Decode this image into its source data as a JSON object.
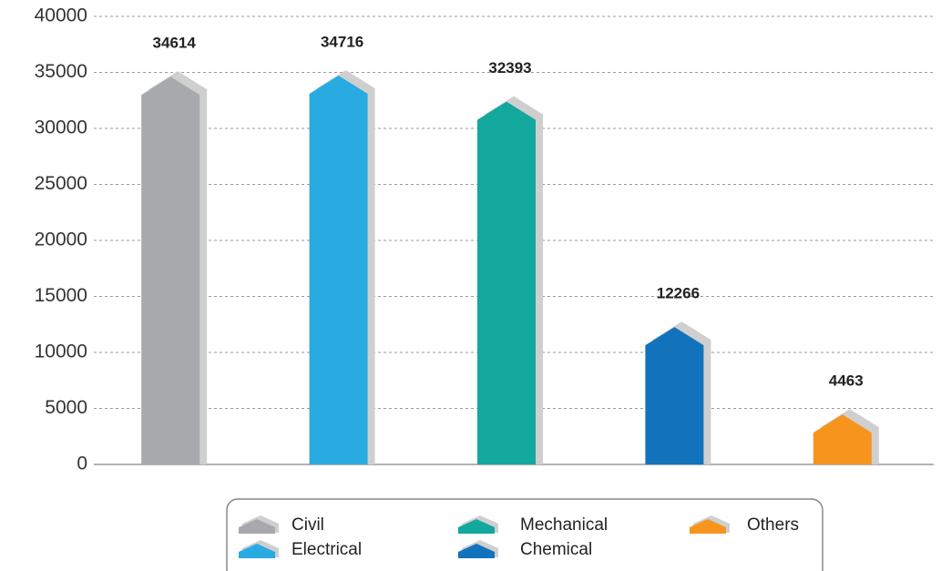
{
  "chart_data": {
    "type": "bar",
    "categories": [
      "Civil",
      "Electrical",
      "Mechanical",
      "Chemical",
      "Others"
    ],
    "values": [
      34614,
      34716,
      32393,
      12266,
      4463
    ],
    "colors": [
      "#a7a9ac",
      "#29abe2",
      "#13a89e",
      "#1273bc",
      "#f7941d"
    ],
    "ylim": [
      0,
      40000
    ],
    "yticks": [
      0,
      5000,
      10000,
      15000,
      20000,
      25000,
      30000,
      35000,
      40000
    ],
    "grid": true,
    "legend": "bottom"
  }
}
